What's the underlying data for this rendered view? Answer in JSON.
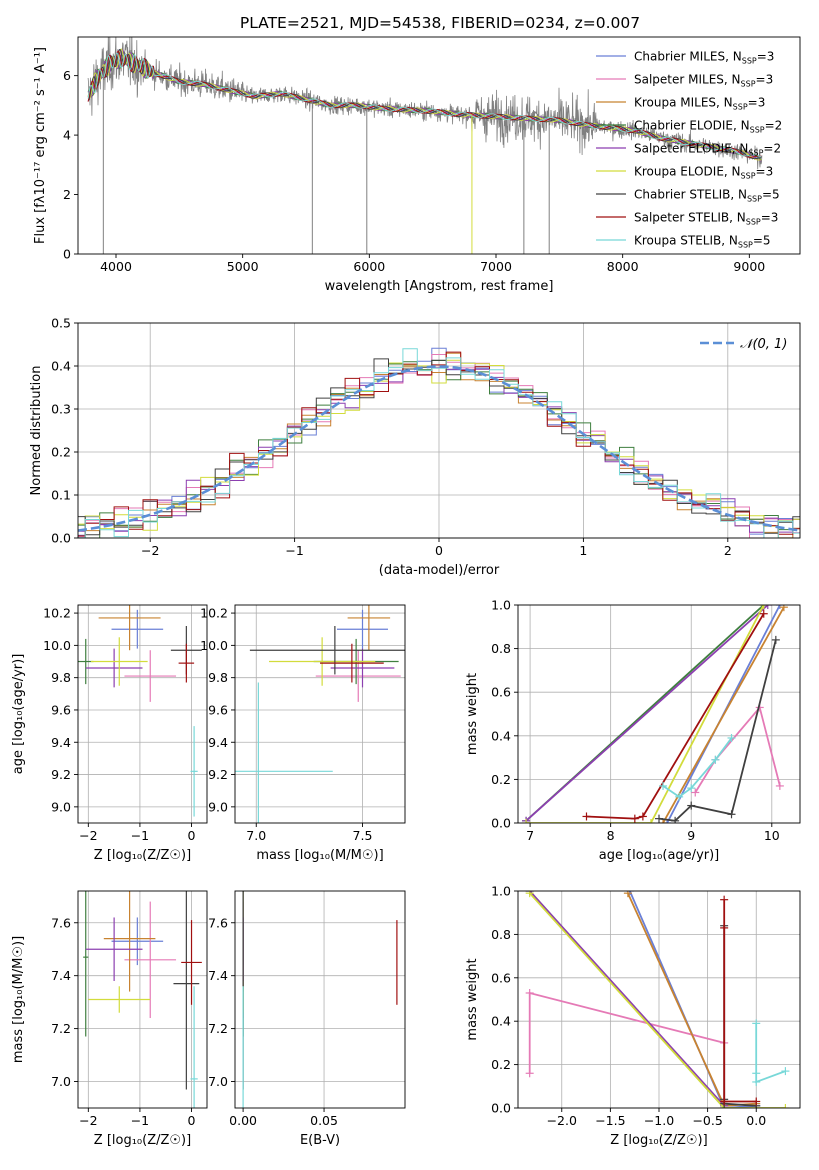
{
  "figure": {
    "title": "PLATE=2521, MJD=54538, FIBERID=0234, z=0.007"
  },
  "models": [
    {
      "name": "Chabrier MILES",
      "nssp": "3",
      "color": "#6a7fd6"
    },
    {
      "name": "Salpeter MILES",
      "nssp": "3",
      "color": "#e57ab6"
    },
    {
      "name": "Kroupa MILES",
      "nssp": "3",
      "color": "#c88331"
    },
    {
      "name": "Chabrier ELODIE",
      "nssp": "2",
      "color": "#3f7f3f"
    },
    {
      "name": "Salpeter ELODIE",
      "nssp": "2",
      "color": "#8c3fb0"
    },
    {
      "name": "Kroupa ELODIE",
      "nssp": "3",
      "color": "#d2dc3c"
    },
    {
      "name": "Chabrier STELIB",
      "nssp": "5",
      "color": "#404040"
    },
    {
      "name": "Salpeter STELIB",
      "nssp": "3",
      "color": "#a01010"
    },
    {
      "name": "Kroupa STELIB",
      "nssp": "5",
      "color": "#78d8d8"
    }
  ],
  "chart_data": [
    {
      "id": "spectrum",
      "type": "line",
      "title": "PLATE=2521, MJD=54538, FIBERID=0234, z=0.007",
      "xlabel": "wavelength [Angstrom, rest frame]",
      "ylabel": "Flux [fλ10⁻¹⁷ erg cm⁻² s⁻¹ A⁻¹]",
      "xlim": [
        3700,
        9400
      ],
      "ylim": [
        0,
        7.3
      ],
      "xticks": [
        "4000",
        "5000",
        "6000",
        "7000",
        "8000",
        "9000"
      ],
      "yticks": [
        "0",
        "2",
        "4",
        "6"
      ],
      "grid": false,
      "legend": "upper right",
      "data_color": "#808080",
      "continuum": {
        "x": [
          3780,
          3850,
          3950,
          4050,
          4150,
          4300,
          4500,
          4700,
          4900,
          5100,
          5300,
          5500,
          5700,
          5900,
          6100,
          6300,
          6500,
          6700,
          6900,
          7100,
          7300,
          7500,
          7700,
          7900,
          8100,
          8300,
          8500,
          8700,
          8900,
          9100
        ],
        "y": [
          5.3,
          5.9,
          6.4,
          6.6,
          6.4,
          6.1,
          5.8,
          5.7,
          5.5,
          5.3,
          5.4,
          5.2,
          5.0,
          5.0,
          4.9,
          4.85,
          4.8,
          4.7,
          4.65,
          4.6,
          4.55,
          4.5,
          4.35,
          4.25,
          4.15,
          3.9,
          3.75,
          3.6,
          3.45,
          3.2
        ]
      }
    },
    {
      "id": "residuals",
      "type": "histogram",
      "xlabel": "(data-model)/error",
      "ylabel": "Normed distribution",
      "xlim": [
        -2.5,
        2.5
      ],
      "ylim": [
        0,
        0.5
      ],
      "xticks": [
        "−2",
        "−1",
        "0",
        "1",
        "2"
      ],
      "yticks": [
        "0.0",
        "0.1",
        "0.2",
        "0.3",
        "0.4",
        "0.5"
      ],
      "grid": true,
      "legend": "upper right",
      "reference_label": "𝒩(0, 1)",
      "reference_color": "#5b8fd6",
      "bin_width": 0.1
    },
    {
      "id": "age-vs-Z",
      "type": "scatter",
      "xlabel": "Z [log₁₀(Z/Z☉)]",
      "ylabel": "age [log₁₀(age/yr)]",
      "xlim": [
        -2.2,
        0.3
      ],
      "ylim": [
        8.9,
        10.25
      ],
      "xticks": [
        "−2",
        "−1",
        "0"
      ],
      "yticks": [
        "9.0",
        "9.2",
        "9.4",
        "9.6",
        "9.8",
        "10.0",
        "10.2"
      ],
      "grid": true,
      "points": [
        {
          "m": 0,
          "x": -1.05,
          "y": 10.1,
          "xe": 0.5,
          "ye": 0.12
        },
        {
          "m": 1,
          "x": -0.8,
          "y": 9.81,
          "xe": 0.5,
          "ye": 0.16
        },
        {
          "m": 2,
          "x": -1.2,
          "y": 10.17,
          "xe": 0.6,
          "ye": 0.2
        },
        {
          "m": 3,
          "x": -2.05,
          "y": 9.9,
          "xe": 0.15,
          "ye": 0.14
        },
        {
          "m": 4,
          "x": -1.5,
          "y": 9.86,
          "xe": 0.55,
          "ye": 0.12
        },
        {
          "m": 5,
          "x": -1.4,
          "y": 9.9,
          "xe": 0.55,
          "ye": 0.15
        },
        {
          "m": 6,
          "x": -0.1,
          "y": 9.97,
          "xe": 0.3,
          "ye": 0.15
        },
        {
          "m": 7,
          "x": -0.1,
          "y": 9.89,
          "xe": 0.15,
          "ye": 0.12
        },
        {
          "m": 8,
          "x": 0.05,
          "y": 9.22,
          "xe": 0.07,
          "ye": 0.28
        }
      ]
    },
    {
      "id": "age-vs-mass",
      "type": "scatter",
      "xlabel": "mass [log₁₀(M/M☉)]",
      "ylabel": "",
      "xlim": [
        6.9,
        7.7
      ],
      "ylim": [
        8.9,
        10.25
      ],
      "xticks": [
        "7.0",
        "7.5"
      ],
      "yticks": [
        "9.0",
        "9.2",
        "9.4",
        "9.6",
        "9.8",
        "10.0",
        "10.2"
      ],
      "grid": true,
      "points": [
        {
          "m": 0,
          "x": 7.5,
          "y": 10.1,
          "xe": 0.12,
          "ye": 0.12
        },
        {
          "m": 1,
          "x": 7.48,
          "y": 9.81,
          "xe": 0.2,
          "ye": 0.16
        },
        {
          "m": 2,
          "x": 7.53,
          "y": 10.17,
          "xe": 0.1,
          "ye": 0.2
        },
        {
          "m": 3,
          "x": 7.47,
          "y": 9.9,
          "xe": 0.2,
          "ye": 0.14
        },
        {
          "m": 4,
          "x": 7.5,
          "y": 9.86,
          "xe": 0.15,
          "ye": 0.12
        },
        {
          "m": 5,
          "x": 7.31,
          "y": 9.9,
          "xe": 0.25,
          "ye": 0.15
        },
        {
          "m": 6,
          "x": 7.37,
          "y": 9.97,
          "xe": 0.4,
          "ye": 0.15
        },
        {
          "m": 7,
          "x": 7.45,
          "y": 9.89,
          "xe": 0.15,
          "ye": 0.12
        },
        {
          "m": 8,
          "x": 7.01,
          "y": 9.22,
          "xe": 0.35,
          "ye": 0.55
        }
      ]
    },
    {
      "id": "massweight-vs-age",
      "type": "line",
      "xlabel": "age  [log₁₀(age/yr)]",
      "ylabel": "mass weight",
      "xlim": [
        6.85,
        10.35
      ],
      "ylim": [
        0,
        1
      ],
      "xticks": [
        "7",
        "8",
        "9",
        "10"
      ],
      "yticks": [
        "0.0",
        "0.2",
        "0.4",
        "0.6",
        "0.8",
        "1.0"
      ],
      "grid": true,
      "series": [
        {
          "m": 0,
          "x": [
            8.7,
            10.1
          ],
          "y": [
            0,
            1.0
          ]
        },
        {
          "m": 1,
          "x": [
            9.05,
            9.3,
            9.85,
            10.1
          ],
          "y": [
            0.14,
            0.29,
            0.53,
            0.17
          ]
        },
        {
          "m": 2,
          "x": [
            8.65,
            10.15
          ],
          "y": [
            0,
            0.99
          ]
        },
        {
          "m": 3,
          "x": [
            6.95,
            9.9
          ],
          "y": [
            0.01,
            1.0
          ]
        },
        {
          "m": 4,
          "x": [
            6.95,
            9.95
          ],
          "y": [
            0.01,
            1.0
          ]
        },
        {
          "m": 5,
          "x": [
            6.95,
            8.5,
            9.9
          ],
          "y": [
            0.0,
            0.0,
            1.0
          ]
        },
        {
          "m": 6,
          "x": [
            8.6,
            8.8,
            9.0,
            9.5,
            10.05
          ],
          "y": [
            0.02,
            0.01,
            0.08,
            0.04,
            0.84
          ]
        },
        {
          "m": 7,
          "x": [
            7.7,
            8.3,
            8.4,
            9.9
          ],
          "y": [
            0.03,
            0.02,
            0.03,
            0.96
          ]
        },
        {
          "m": 8,
          "x": [
            8.65,
            8.85,
            9.0,
            9.3,
            9.5
          ],
          "y": [
            0.17,
            0.12,
            0.16,
            0.29,
            0.39
          ]
        }
      ]
    },
    {
      "id": "mass-vs-Z",
      "type": "scatter",
      "xlabel": "Z [log₁₀(Z/Z☉)]",
      "ylabel": "mass [log₁₀(M/M☉)]",
      "xlim": [
        -2.2,
        0.3
      ],
      "ylim": [
        6.9,
        7.72
      ],
      "xticks": [
        "−2",
        "−1",
        "0"
      ],
      "yticks": [
        "7.0",
        "7.2",
        "7.4",
        "7.6"
      ],
      "grid": true,
      "points": [
        {
          "m": 0,
          "x": -1.05,
          "y": 7.53,
          "xe": 0.5,
          "ye": 0.09
        },
        {
          "m": 1,
          "x": -0.8,
          "y": 7.46,
          "xe": 0.5,
          "ye": 0.22
        },
        {
          "m": 2,
          "x": -1.2,
          "y": 7.54,
          "xe": 0.5,
          "ye": 0.2
        },
        {
          "m": 3,
          "x": -2.05,
          "y": 7.47,
          "xe": 0.05,
          "ye": 0.3
        },
        {
          "m": 4,
          "x": -1.5,
          "y": 7.5,
          "xe": 0.55,
          "ye": 0.12
        },
        {
          "m": 5,
          "x": -1.4,
          "y": 7.31,
          "xe": 0.6,
          "ye": 0.05
        },
        {
          "m": 6,
          "x": -0.1,
          "y": 7.37,
          "xe": 0.25,
          "ye": 0.4
        },
        {
          "m": 7,
          "x": 0.0,
          "y": 7.45,
          "xe": 0.2,
          "ye": 0.16
        },
        {
          "m": 8,
          "x": 0.05,
          "y": 7.01,
          "xe": 0.07,
          "ye": 0.35
        }
      ]
    },
    {
      "id": "mass-vs-ebv",
      "type": "scatter",
      "xlabel": "E(B-V)",
      "ylabel": "",
      "xlim": [
        -0.005,
        0.1
      ],
      "ylim": [
        6.9,
        7.72
      ],
      "xticks": [
        "0.00",
        "0.05"
      ],
      "yticks": [
        "7.0",
        "7.2",
        "7.4",
        "7.6"
      ],
      "grid": true,
      "points": [
        {
          "m": 0,
          "x": 0.0,
          "y": 7.53,
          "xe": 0,
          "ye": 0.09
        },
        {
          "m": 1,
          "x": 0.0,
          "y": 7.46,
          "xe": 0,
          "ye": 0.22
        },
        {
          "m": 2,
          "x": 0.0,
          "y": 7.54,
          "xe": 0,
          "ye": 0.2
        },
        {
          "m": 3,
          "x": 0.0,
          "y": 7.47,
          "xe": 0,
          "ye": 0.3
        },
        {
          "m": 4,
          "x": 0.0,
          "y": 7.5,
          "xe": 0,
          "ye": 0.12
        },
        {
          "m": 5,
          "x": 0.0,
          "y": 7.31,
          "xe": 0,
          "ye": 0.05
        },
        {
          "m": 6,
          "x": 0.0,
          "y": 7.37,
          "xe": 0,
          "ye": 0.4
        },
        {
          "m": 7,
          "x": 0.095,
          "y": 7.45,
          "xe": 0,
          "ye": 0.16
        },
        {
          "m": 8,
          "x": 0.0,
          "y": 7.01,
          "xe": 0,
          "ye": 0.35
        }
      ]
    },
    {
      "id": "massweight-vs-Z",
      "type": "line",
      "xlabel": "Z [log₁₀(Z/Z☉)]",
      "ylabel": "mass weight",
      "xlim": [
        -2.45,
        0.45
      ],
      "ylim": [
        0,
        1
      ],
      "xticks": [
        "−2.0",
        "−1.5",
        "−1.0",
        "−0.5",
        "0.0"
      ],
      "yticks": [
        "0.0",
        "0.2",
        "0.4",
        "0.6",
        "0.8",
        "1.0"
      ],
      "grid": true,
      "series": [
        {
          "m": 0,
          "x": [
            -1.3,
            -0.33,
            0.0
          ],
          "y": [
            1.0,
            0.0,
            0.01
          ]
        },
        {
          "m": 1,
          "x": [
            -2.33,
            -2.33,
            -0.33
          ],
          "y": [
            0.16,
            0.53,
            0.3
          ]
        },
        {
          "m": 2,
          "x": [
            -1.32,
            -0.33,
            0.0
          ],
          "y": [
            0.99,
            0.01,
            0.02
          ]
        },
        {
          "m": 3,
          "x": [
            -2.33,
            -0.33
          ],
          "y": [
            1.0,
            0.0
          ]
        },
        {
          "m": 4,
          "x": [
            -2.33,
            -0.33
          ],
          "y": [
            1.0,
            0.01
          ]
        },
        {
          "m": 5,
          "x": [
            -2.33,
            -0.33,
            0.3
          ],
          "y": [
            0.99,
            0.0,
            0.0
          ]
        },
        {
          "m": 6,
          "x": [
            -0.33,
            -0.33,
            -0.33,
            0.0
          ],
          "y": [
            0.84,
            0.04,
            0.02,
            0.01
          ]
        },
        {
          "m": 7,
          "x": [
            -0.33,
            -0.33,
            -0.33,
            0.0
          ],
          "y": [
            0.96,
            0.83,
            0.03,
            0.03
          ]
        },
        {
          "m": 8,
          "x": [
            0.0,
            0.0,
            0.0,
            0.3
          ],
          "y": [
            0.39,
            0.16,
            0.12,
            0.17
          ]
        }
      ]
    }
  ]
}
